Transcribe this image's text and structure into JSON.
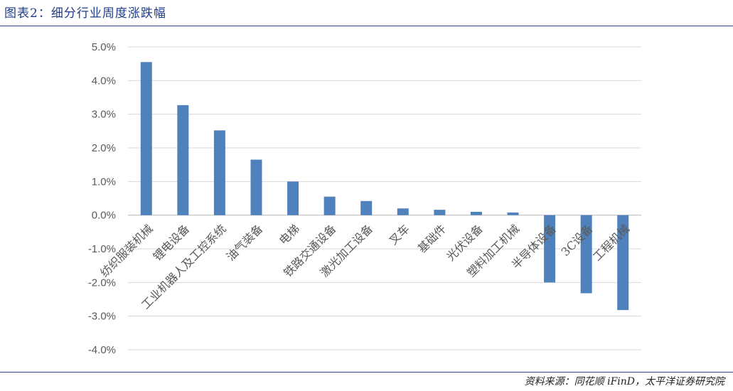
{
  "header": {
    "title": "图表2：细分行业周度涨跌幅"
  },
  "footer": {
    "source": "资料来源：同花顺 iFinD，太平洋证券研究院"
  },
  "chart_data": {
    "type": "bar",
    "title": "",
    "xlabel": "",
    "ylabel": "",
    "ylim": [
      -4.0,
      5.0
    ],
    "ytick_step": 1.0,
    "ytick_format": "percent_1dp",
    "grid": true,
    "bar_color": "#4f81bd",
    "categories": [
      "纺织服装机械",
      "锂电设备",
      "工业机器人及工控系统",
      "油气装备",
      "电梯",
      "铁路交通设备",
      "激光加工设备",
      "叉车",
      "基础件",
      "光伏设备",
      "塑料加工机械",
      "半导体设备",
      "3C设备",
      "工程机械"
    ],
    "values": [
      4.55,
      3.27,
      2.52,
      1.65,
      1.0,
      0.55,
      0.42,
      0.2,
      0.16,
      0.1,
      0.08,
      -2.0,
      -2.32,
      -2.82
    ]
  }
}
